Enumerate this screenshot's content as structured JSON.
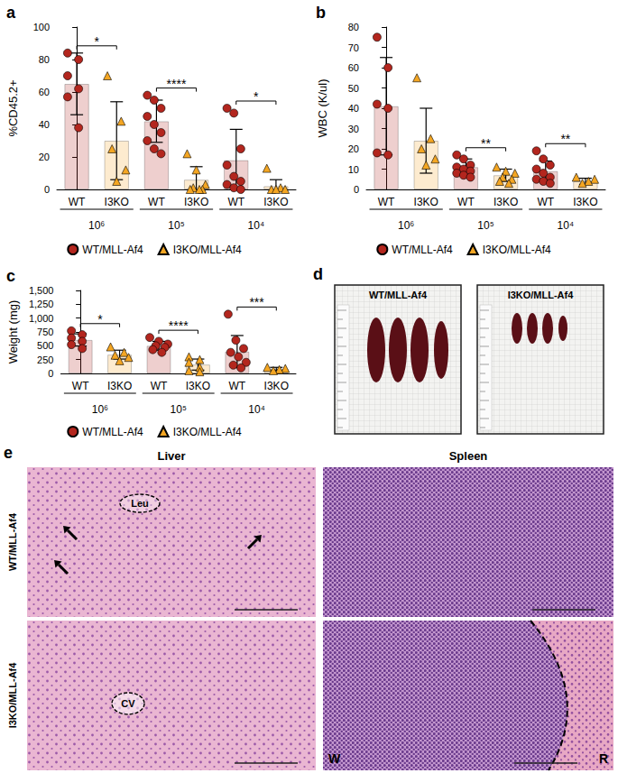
{
  "chart_data": [
    {
      "title": "a",
      "type": "bar",
      "y_label": "%CD45.2+",
      "categories": [
        "10⁶",
        "10⁵",
        "10⁴"
      ],
      "ylim": [
        0,
        100
      ],
      "yticks": [
        0,
        20,
        40,
        60,
        80,
        100
      ],
      "grid": false,
      "legend": "bottom",
      "significance": [
        "*",
        "****",
        "*"
      ],
      "series": [
        {
          "name": "WT/MLL-Af4",
          "label": "WT",
          "color": "#b3261e",
          "marker": "circle",
          "values": [
            65,
            42,
            18
          ],
          "errors": [
            19,
            13,
            19
          ],
          "points": [
            [
              84,
              80,
              70,
              62,
              57,
              38
            ],
            [
              58,
              55,
              50,
              45,
              40,
              35,
              30,
              25,
              22
            ],
            [
              50,
              47,
              25,
              15,
              8,
              5,
              3,
              1,
              0
            ]
          ]
        },
        {
          "name": "I3KO/MLL-Af4",
          "label": "I3KO",
          "color": "#f4a623",
          "marker": "triangle",
          "values": [
            30,
            6,
            2
          ],
          "errors": [
            24,
            8,
            4
          ],
          "points": [
            [
              70,
              42,
              25,
              12,
              5
            ],
            [
              22,
              12,
              3,
              1,
              0,
              0,
              0
            ],
            [
              13,
              1,
              0,
              0,
              0
            ]
          ]
        }
      ]
    },
    {
      "title": "b",
      "type": "bar",
      "y_label": "WBC (K/ul)",
      "categories": [
        "10⁶",
        "10⁵",
        "10⁴"
      ],
      "ylim": [
        0,
        80
      ],
      "yticks": [
        0,
        10,
        20,
        30,
        40,
        50,
        60,
        70,
        80
      ],
      "grid": false,
      "legend": "bottom",
      "significance": [
        null,
        "**",
        "**"
      ],
      "series": [
        {
          "name": "WT/MLL-Af4",
          "label": "WT",
          "color": "#b3261e",
          "marker": "circle",
          "values": [
            41,
            11,
            9
          ],
          "errors": [
            24,
            4,
            5
          ],
          "points": [
            [
              75,
              60,
              42,
              40,
              18,
              17
            ],
            [
              17,
              15,
              12,
              11,
              10,
              9,
              8,
              7,
              6
            ],
            [
              19,
              15,
              12,
              10,
              8,
              6,
              5,
              4,
              3
            ]
          ]
        },
        {
          "name": "I3KO/MLL-Af4",
          "label": "I3KO",
          "color": "#f4a623",
          "marker": "triangle",
          "values": [
            24,
            7,
            4
          ],
          "errors": [
            16,
            3,
            1.5
          ],
          "points": [
            [
              55,
              25,
              20,
              15,
              12
            ],
            [
              11,
              9,
              8,
              6,
              5,
              4,
              3
            ],
            [
              6,
              5,
              4,
              3
            ]
          ]
        }
      ]
    },
    {
      "title": "c",
      "type": "bar",
      "y_label": "Weight (mg)",
      "categories": [
        "10⁶",
        "10⁵",
        "10⁴"
      ],
      "ylim": [
        0,
        1500
      ],
      "yticks": [
        0,
        250,
        500,
        750,
        1000,
        1250,
        1500
      ],
      "grid": false,
      "legend": "bottom",
      "significance": [
        "*",
        "****",
        "***"
      ],
      "series": [
        {
          "name": "WT/MLL-Af4",
          "label": "WT",
          "color": "#b3261e",
          "marker": "circle",
          "values": [
            605,
            500,
            395
          ],
          "errors": [
            110,
            80,
            290
          ],
          "points": [
            [
              770,
              700,
              640,
              580,
              520,
              450
            ],
            [
              650,
              580,
              530,
              500,
              470,
              430,
              380
            ],
            [
              1070,
              600,
              450,
              380,
              300,
              200,
              150,
              100
            ]
          ]
        },
        {
          "name": "I3KO/MLL-Af4",
          "label": "I3KO",
          "color": "#f4a623",
          "marker": "triangle",
          "values": [
            340,
            160,
            80
          ],
          "errors": [
            80,
            100,
            30
          ],
          "points": [
            [
              480,
              380,
              330,
              290,
              230
            ],
            [
              300,
              250,
              200,
              110,
              50,
              30
            ],
            [
              110,
              90,
              70,
              50
            ]
          ]
        }
      ]
    }
  ],
  "panel_d": {
    "title": "d",
    "photos": [
      "WT/MLL-Af4",
      "I3KO/MLL-Af4"
    ]
  },
  "panel_e": {
    "title": "e",
    "columns": [
      "Liver",
      "Spleen"
    ],
    "rows": [
      "WT/MLL-Af4",
      "I3KO/MLL-Af4"
    ],
    "liver_labels": [
      "Leu",
      "CV"
    ],
    "spleen_labels": [
      "W",
      "R"
    ]
  }
}
